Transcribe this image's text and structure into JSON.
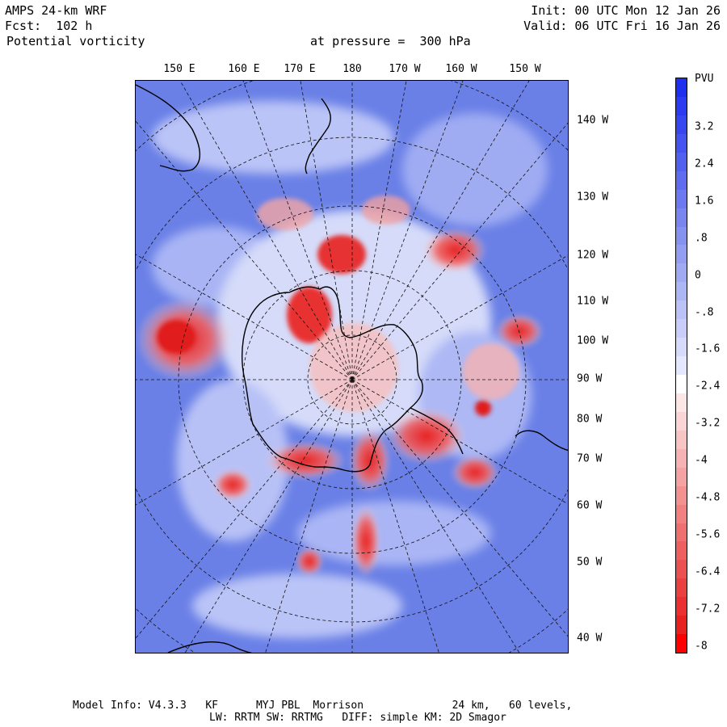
{
  "header": {
    "model": "AMPS 24-km WRF",
    "forecast": "Fcst:  102 h",
    "field": "Potential vorticity",
    "level": "at pressure =  300 hPa",
    "init": "Init: 00 UTC Mon 12 Jan 26",
    "valid": "Valid: 06 UTC Fri 16 Jan 26"
  },
  "map": {
    "top_lon_labels": [
      "150 E",
      "160 E",
      "170 E",
      "180",
      "170 W",
      "160 W",
      "150 W"
    ],
    "right_lon_labels": [
      "140 W",
      "130 W",
      "120 W",
      "110 W",
      "100 W",
      "90 W",
      "80 W",
      "70 W",
      "60 W",
      "50 W",
      "40 W"
    ],
    "colors": {
      "ocean_blue": "#6a80e6",
      "high_pv_red": "#f03c3c",
      "neutral_white": "#f4f4ff",
      "coast": "#000000"
    }
  },
  "colorbar": {
    "title": "PVU",
    "ticks": [
      "3.2",
      "2.4",
      "1.6",
      ".8",
      "0",
      "-.8",
      "-1.6",
      "-2.4",
      "-3.2",
      "-4",
      "-4.8",
      "-5.6",
      "-6.4",
      "-7.2",
      "-8"
    ],
    "colors": [
      "#1f2ff0",
      "#2c3bf0",
      "#3846f0",
      "#4553f0",
      "#5260f0",
      "#5f6cf0",
      "#6c79f0",
      "#7986f0",
      "#8692f0",
      "#939ef2",
      "#a0aaf3",
      "#adb6f5",
      "#bac2f7",
      "#c8cef9",
      "#d6dafb",
      "#e4e7fd",
      "#ffffff",
      "#fde6e6",
      "#fbd5d5",
      "#f9c4c4",
      "#f7b3b3",
      "#f5a2a2",
      "#f39191",
      "#f18080",
      "#ef7070",
      "#ee6060",
      "#ec5050",
      "#eb4040",
      "#ea3030",
      "#e92020",
      "#ff0000"
    ]
  },
  "footer": {
    "line1": "Model Info: V4.3.3   KF      MYJ PBL  Morrison              24 km,   60 levels,",
    "line2": "LW: RRTM SW: RRTMG   DIFF: simple KM: 2D Smagor"
  }
}
